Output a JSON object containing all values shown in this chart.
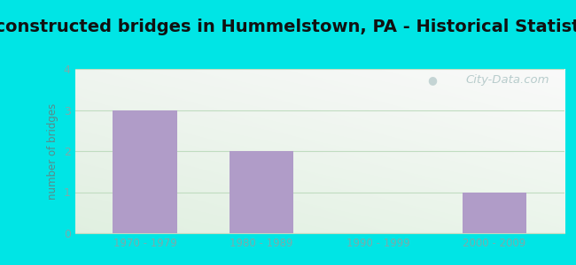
{
  "title": "Reconstructed bridges in Hummelstown, PA - Historical Statistics",
  "categories": [
    "1970 - 1979",
    "1980 - 1989",
    "1990 - 1999",
    "2000 - 2009"
  ],
  "values": [
    3,
    2,
    0,
    1
  ],
  "bar_color": "#b09cc8",
  "bar_width": 0.55,
  "ylabel": "number of bridges",
  "ylim": [
    0,
    4
  ],
  "yticks": [
    0,
    1,
    2,
    3,
    4
  ],
  "bg_outer_color": "#00e5e5",
  "title_fontsize": 14,
  "axis_label_color": "#5a8a8a",
  "tick_color": "#7aacac",
  "grid_color": "#c0dcc0",
  "watermark_text": "City-Data.com",
  "watermark_color": "#b8cccc"
}
